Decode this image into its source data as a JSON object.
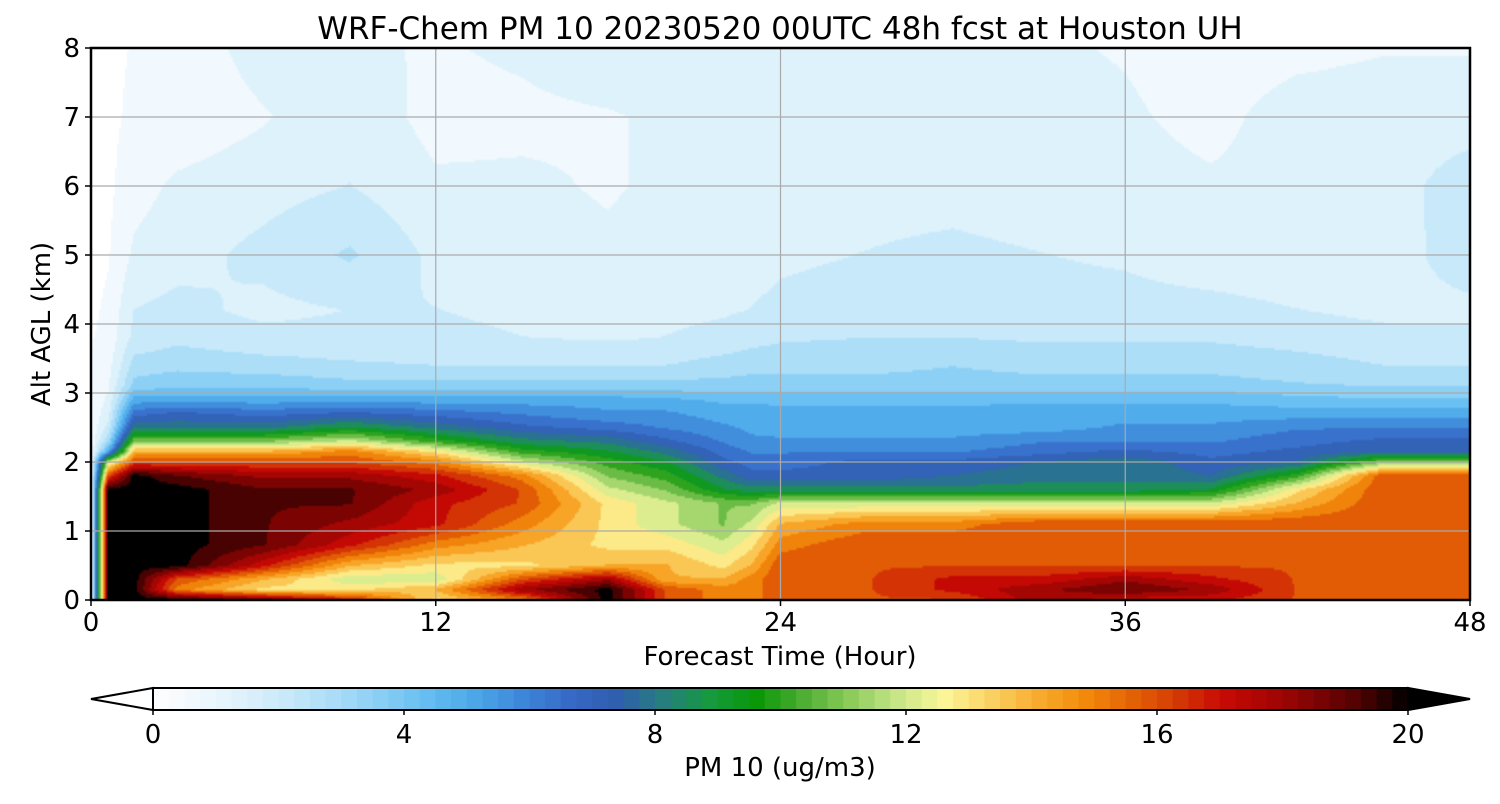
{
  "chart_data": {
    "type": "heatmap",
    "title": "WRF-Chem PM 10  20230520 00UTC 48h fcst at Houston UH",
    "xlabel": "Forecast Time (Hour)",
    "ylabel": "Alt AGL (km)",
    "xlim": [
      0,
      48
    ],
    "ylim": [
      0,
      8
    ],
    "xticks": [
      0,
      12,
      24,
      36,
      48
    ],
    "yticks": [
      0,
      1,
      2,
      3,
      4,
      5,
      6,
      7,
      8
    ],
    "grid": true,
    "colorbar": {
      "label": "PM 10  (ug/m3)",
      "range": [
        0,
        20
      ],
      "ticks": [
        0,
        4,
        8,
        12,
        16,
        20
      ],
      "extend": "both",
      "colors": [
        "#ffffff",
        "#f0f8fe",
        "#ddf1fc",
        "#c6e8fa",
        "#a8dcf8",
        "#86cdf5",
        "#62bcf1",
        "#4aa6e8",
        "#3d85d9",
        "#3769c6",
        "#2f5fae",
        "#267f7e",
        "#169a3e",
        "#0b9808",
        "#4fae34",
        "#8ccc5b",
        "#c7e688",
        "#fbf79a",
        "#fbd365",
        "#f9ad32",
        "#f48d0c",
        "#e56506",
        "#d53c05",
        "#c90a05",
        "#a80604",
        "#7f0403",
        "#4c0202",
        "#000000"
      ],
      "interpolation": "contour"
    },
    "row_z_km": [
      0,
      0.15,
      0.3,
      0.5,
      0.8,
      1.1,
      1.4,
      1.6,
      1.8,
      2.0,
      2.15,
      2.3,
      2.5,
      2.7,
      2.9,
      3.1,
      3.4,
      3.8,
      4.2,
      5.0,
      6.0,
      7.0,
      8.0
    ],
    "col_t_h": [
      0,
      0.6,
      1.5,
      3,
      6,
      9,
      12,
      15,
      18,
      20,
      22,
      23,
      24,
      27,
      30,
      33,
      36,
      39,
      42,
      45,
      48
    ],
    "values": [
      [
        0.5,
        20,
        20,
        20,
        19,
        17,
        13,
        15,
        20,
        16,
        15,
        15,
        16,
        16,
        16,
        18,
        17,
        17,
        16,
        16,
        16
      ],
      [
        0.5,
        20,
        20,
        15,
        13,
        13,
        14,
        18,
        20,
        16,
        15,
        15,
        16,
        16,
        17,
        18,
        19,
        18,
        16,
        16,
        16
      ],
      [
        0.5,
        20,
        20,
        16,
        14,
        12,
        12,
        16,
        18,
        14,
        14,
        15,
        16,
        16,
        17,
        17,
        18,
        17,
        16,
        16,
        16
      ],
      [
        0.5,
        20,
        20,
        20,
        17,
        14,
        13,
        13,
        14,
        14,
        13,
        14,
        16,
        16,
        16,
        16,
        16,
        16,
        16,
        16,
        16
      ],
      [
        0.5,
        20,
        20,
        20,
        19,
        17,
        15,
        14,
        13,
        13,
        12,
        13,
        15,
        16,
        16,
        16,
        16,
        16,
        16,
        16,
        16
      ],
      [
        0.5,
        20,
        20,
        20,
        19,
        18,
        17,
        15,
        13,
        12,
        11,
        12,
        14,
        15,
        15,
        16,
        16,
        16,
        16,
        16,
        16
      ],
      [
        0.5,
        20,
        20,
        20,
        19,
        19,
        17,
        16,
        13,
        12,
        11,
        11,
        12,
        12,
        12,
        12,
        12,
        12,
        14,
        16,
        16
      ],
      [
        0.5,
        20,
        20,
        20,
        19,
        19,
        18,
        16,
        12,
        11,
        9,
        8.5,
        8.5,
        8.5,
        8.5,
        8.5,
        8.5,
        9,
        13,
        16,
        16
      ],
      [
        0.5,
        16,
        20,
        19,
        18,
        18,
        17,
        15,
        11,
        10,
        8,
        7,
        7,
        7,
        7.5,
        8,
        8,
        7.5,
        10,
        16,
        16
      ],
      [
        0.5,
        12,
        16,
        16,
        16,
        16,
        15,
        12,
        10,
        9,
        7,
        6.5,
        6.5,
        7,
        7,
        7.5,
        8,
        7,
        7.5,
        11,
        11
      ],
      [
        0.5,
        5,
        14,
        14,
        14,
        15,
        13,
        10,
        9,
        8,
        6.5,
        6,
        6,
        6,
        6,
        6.5,
        7,
        6.5,
        7,
        7.5,
        7.5
      ],
      [
        0.5,
        3,
        11,
        11,
        11,
        12,
        10,
        8.5,
        8,
        7,
        6,
        5.5,
        5.5,
        5.5,
        5.5,
        6,
        6,
        6,
        6.5,
        7,
        7
      ],
      [
        0.5,
        2,
        8,
        8,
        8,
        9,
        8,
        7,
        6.5,
        6,
        5.5,
        5.2,
        5,
        5,
        5,
        5,
        5.5,
        5.5,
        6,
        6,
        6
      ],
      [
        0.5,
        1.5,
        6.5,
        7,
        6.5,
        7,
        6.5,
        6,
        5.5,
        5.5,
        5,
        5,
        4.8,
        4.8,
        4.8,
        5,
        5,
        5,
        5,
        5,
        5
      ],
      [
        0.5,
        1.2,
        5,
        5,
        5,
        5,
        5,
        5,
        5,
        4.8,
        4.5,
        4.5,
        4.5,
        4.5,
        4.5,
        4.5,
        4.5,
        4.5,
        4.2,
        4,
        4
      ],
      [
        0.5,
        1.0,
        3.5,
        3.8,
        3.8,
        3.5,
        3.5,
        3.5,
        3.5,
        3.5,
        3.5,
        3.5,
        3.5,
        3.5,
        3.5,
        3.5,
        3.5,
        3.5,
        3.3,
        3.2,
        3.2
      ],
      [
        0.4,
        0.8,
        2.8,
        3.0,
        2.8,
        2.6,
        2.5,
        2.5,
        2.5,
        2.5,
        2.8,
        3.0,
        3.0,
        3.0,
        3.2,
        3.0,
        3.0,
        3.0,
        2.8,
        2.5,
        2.5
      ],
      [
        0.3,
        0.6,
        2.0,
        2.3,
        2.0,
        2.0,
        2.0,
        1.8,
        1.7,
        1.8,
        2.0,
        2.2,
        2.4,
        2.5,
        2.5,
        2.4,
        2.4,
        2.4,
        2.2,
        2.0,
        2.0
      ],
      [
        0.2,
        0.5,
        1.8,
        2.0,
        1.6,
        1.8,
        1.8,
        1.6,
        1.5,
        1.6,
        1.7,
        1.8,
        1.9,
        2.0,
        2.0,
        2.0,
        2.0,
        2.0,
        1.8,
        1.6,
        1.6
      ],
      [
        0.1,
        0.3,
        1.2,
        1.5,
        2.0,
        2.6,
        1.6,
        1.4,
        1.2,
        1.4,
        1.5,
        1.6,
        1.7,
        1.8,
        1.9,
        1.8,
        1.7,
        1.4,
        1.3,
        1.4,
        2.2
      ],
      [
        0.1,
        0.2,
        0.8,
        1.2,
        1.5,
        1.8,
        1.2,
        1.2,
        1.0,
        1.2,
        1.3,
        1.4,
        1.5,
        1.6,
        1.6,
        1.5,
        1.4,
        1.2,
        1.4,
        1.6,
        2.0
      ],
      [
        0.1,
        0.2,
        0.5,
        0.6,
        1.0,
        1.6,
        0.8,
        0.9,
        1.0,
        1.2,
        1.4,
        1.6,
        1.7,
        1.7,
        1.6,
        1.4,
        1.2,
        0.8,
        1.5,
        1.6,
        1.6
      ],
      [
        0.1,
        0.2,
        0.4,
        0.6,
        1.4,
        1.2,
        1.0,
        1.2,
        1.6,
        1.6,
        1.4,
        1.3,
        1.3,
        1.3,
        1.3,
        1.2,
        1.0,
        0.6,
        0.8,
        1.0,
        1.0
      ]
    ]
  }
}
